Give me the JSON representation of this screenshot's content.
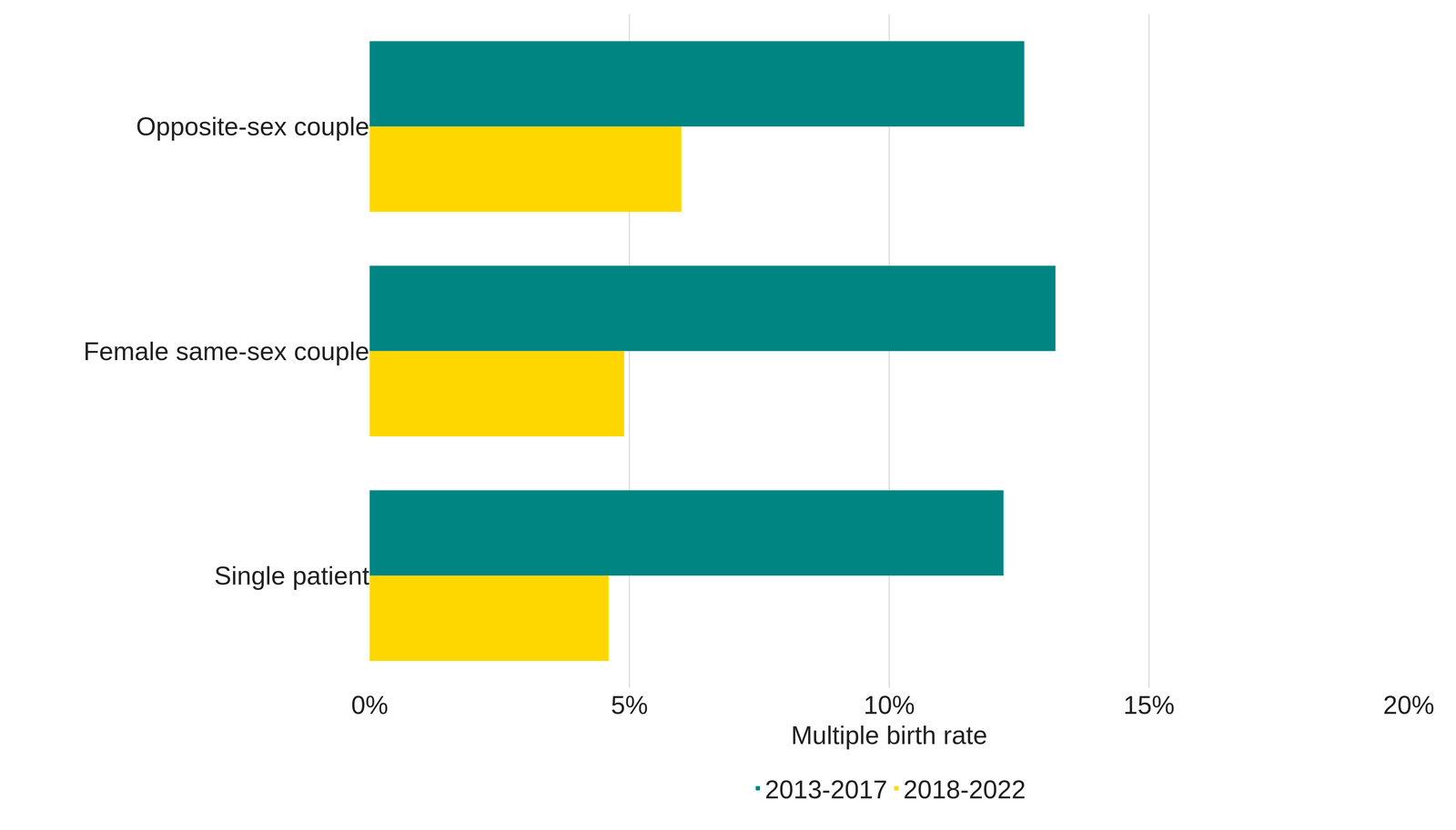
{
  "chart_data": {
    "type": "bar",
    "orientation": "horizontal",
    "x_label": "Multiple birth rate",
    "categories": [
      "Opposite-sex couple",
      "Female same-sex couple",
      "Single patient"
    ],
    "series": [
      {
        "name": "2013-2017",
        "color": "#008582",
        "values": [
          12.6,
          13.2,
          12.2
        ]
      },
      {
        "name": "2018-2022",
        "color": "#FFD700",
        "values": [
          6.0,
          4.9,
          4.6
        ]
      }
    ],
    "xlim": [
      0,
      20
    ],
    "xticks": [
      {
        "value": 0,
        "label": "0%"
      },
      {
        "value": 5,
        "label": "5%"
      },
      {
        "value": 10,
        "label": "10%"
      },
      {
        "value": 15,
        "label": "15%"
      },
      {
        "value": 20,
        "label": "20%"
      }
    ],
    "grid": true,
    "legend": "bottom"
  }
}
